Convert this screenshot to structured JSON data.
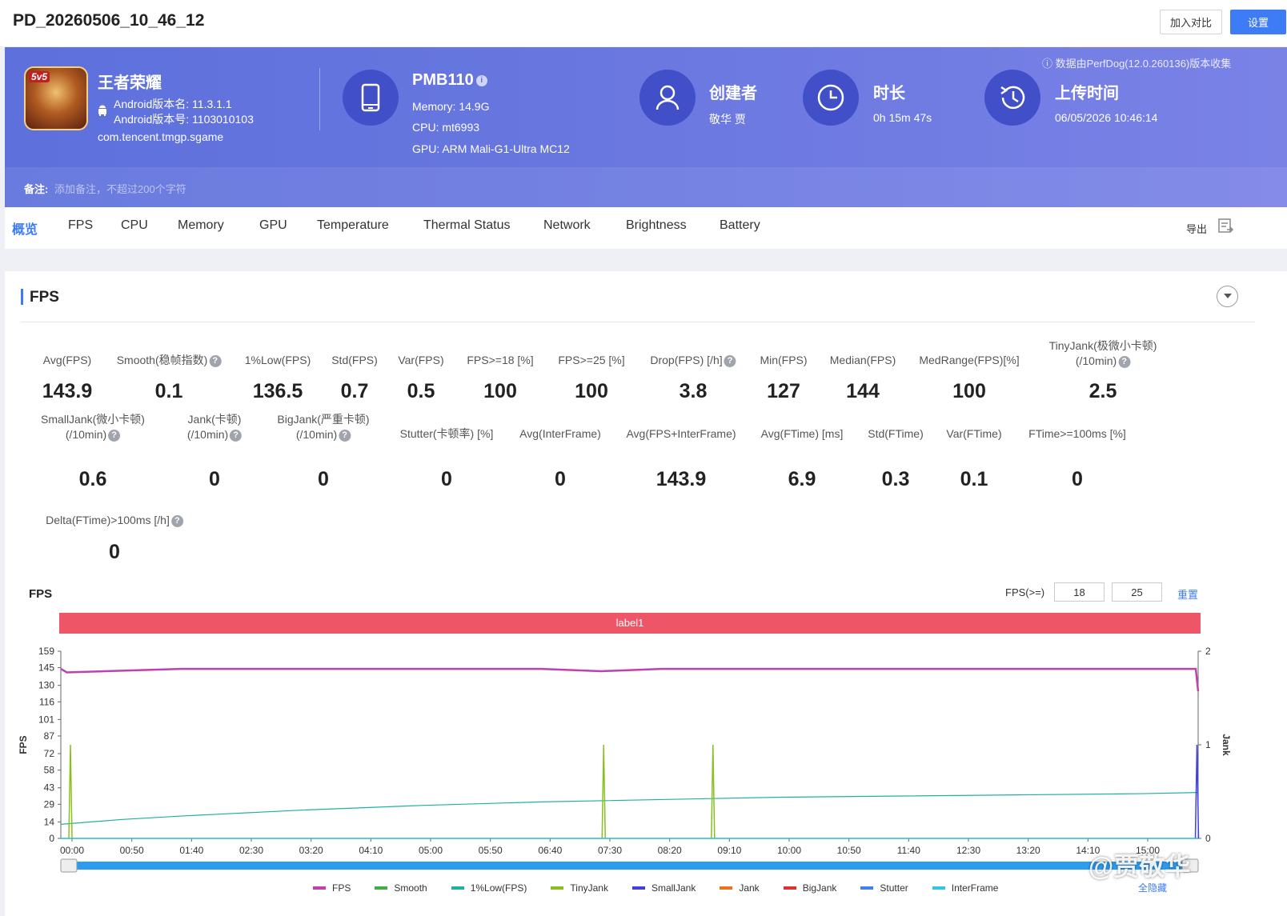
{
  "header": {
    "title": "PD_20260506_10_46_12",
    "compare_btn": "加入对比",
    "settings_btn": "设置"
  },
  "banner": {
    "data_source": "ⓘ 数据由PerfDog(12.0.260136)版本收集",
    "app": {
      "icon_tag": "5v5",
      "name": "王者荣耀",
      "android_version_name": "Android版本名: 11.3.1.1",
      "android_version_code": "Android版本号: 1103010103",
      "package": "com.tencent.tmgp.sgame"
    },
    "device": {
      "name": "PMB110",
      "memory": "Memory: 14.9G",
      "cpu": "CPU: mt6993",
      "gpu": "GPU: ARM Mali-G1-Ultra MC12"
    },
    "creator": {
      "title": "创建者",
      "value": "敬华 贾"
    },
    "duration": {
      "title": "时长",
      "value": "0h 15m 47s"
    },
    "upload": {
      "title": "上传时间",
      "value": "06/05/2026 10:46:14"
    },
    "note_label": "备注:",
    "note_placeholder": "添加备注，不超过200个字符"
  },
  "tabs": [
    "概览",
    "FPS",
    "CPU",
    "Memory",
    "GPU",
    "Temperature",
    "Thermal Status",
    "Network",
    "Brightness",
    "Battery"
  ],
  "export_label": "导出",
  "panel": {
    "title": "FPS",
    "metrics_row1": [
      {
        "label": "Avg(FPS)",
        "value": "143.9"
      },
      {
        "label": "Smooth(稳帧指数)",
        "value": "0.1",
        "help": true
      },
      {
        "label": "1%Low(FPS)",
        "value": "136.5"
      },
      {
        "label": "Std(FPS)",
        "value": "0.7"
      },
      {
        "label": "Var(FPS)",
        "value": "0.5"
      },
      {
        "label": "FPS>=18 [%]",
        "value": "100"
      },
      {
        "label": "FPS>=25 [%]",
        "value": "100"
      },
      {
        "label": "Drop(FPS) [/h]",
        "value": "3.8",
        "help": true
      },
      {
        "label": "Min(FPS)",
        "value": "127"
      },
      {
        "label": "Median(FPS)",
        "value": "144"
      },
      {
        "label": "MedRange(FPS)[%]",
        "value": "100"
      },
      {
        "label": "TinyJank(极微小卡顿)",
        "label2": "(/10min)",
        "value": "2.5",
        "help": true
      }
    ],
    "metrics_row2": [
      {
        "label": "SmallJank(微小卡顿)",
        "label2": "(/10min)",
        "value": "0.6",
        "help": true
      },
      {
        "label": "Jank(卡顿)",
        "label2": "(/10min)",
        "value": "0",
        "help": true
      },
      {
        "label": "BigJank(严重卡顿)",
        "label2": "(/10min)",
        "value": "0",
        "help": true
      },
      {
        "label": "Stutter(卡顿率) [%]",
        "value": "0"
      },
      {
        "label": "Avg(InterFrame)",
        "value": "0"
      },
      {
        "label": "Avg(FPS+InterFrame)",
        "value": "143.9"
      },
      {
        "label": "Avg(FTime) [ms]",
        "value": "6.9"
      },
      {
        "label": "Std(FTime)",
        "value": "0.3"
      },
      {
        "label": "Var(FTime)",
        "value": "0.1"
      },
      {
        "label": "FTime>=100ms [%]",
        "value": "0"
      }
    ],
    "metrics_row3": [
      {
        "label": "Delta(FTime)>100ms [/h]",
        "value": "0",
        "help": true
      }
    ],
    "chart_title": "FPS",
    "fps_threshold_label": "FPS(>=)",
    "fps_threshold_1": "18",
    "fps_threshold_2": "25",
    "reset_label": "重置",
    "label_bar": "label1",
    "hide_all": "全隐藏",
    "watermark": "@贾敬华"
  },
  "chart_data": {
    "type": "line",
    "ylabel": "FPS",
    "ylabel_right": "Jank",
    "y_ticks": [
      0,
      14,
      29,
      43,
      58,
      72,
      87,
      101,
      116,
      130,
      145,
      159
    ],
    "y_right_ticks": [
      0,
      1,
      2
    ],
    "ylim": [
      0,
      159
    ],
    "ylim_right": [
      0,
      2
    ],
    "x_ticks": [
      "00:00",
      "00:50",
      "01:40",
      "02:30",
      "03:20",
      "04:10",
      "05:00",
      "05:50",
      "06:40",
      "07:30",
      "08:20",
      "09:10",
      "10:00",
      "10:50",
      "11:40",
      "12:30",
      "13:20",
      "14:10",
      "15:00"
    ],
    "x_max_seconds": 947,
    "series": [
      {
        "name": "FPS",
        "color": "#c040b0",
        "axis": "left",
        "x": [
          0,
          5,
          100,
          200,
          300,
          400,
          450,
          500,
          600,
          700,
          800,
          900,
          945,
          947
        ],
        "values": [
          144,
          141,
          144,
          144,
          144,
          144,
          142,
          144,
          144,
          144,
          144,
          144,
          144,
          125
        ]
      },
      {
        "name": "Smooth",
        "color": "#3cb043",
        "axis": "left",
        "x": [
          0,
          947
        ],
        "values": [
          0,
          0
        ]
      },
      {
        "name": "1%Low(FPS)",
        "color": "#20b0a0",
        "axis": "left",
        "x": [
          0,
          50,
          100,
          200,
          300,
          400,
          500,
          600,
          700,
          800,
          900,
          947
        ],
        "values": [
          12,
          16,
          19,
          24,
          28,
          31,
          33,
          35,
          36,
          37,
          38,
          39
        ]
      },
      {
        "name": "TinyJank",
        "color": "#88c020",
        "axis": "right",
        "spikes": [
          8,
          452,
          543
        ]
      },
      {
        "name": "SmallJank",
        "color": "#4040e0",
        "axis": "right",
        "spikes": [
          946
        ]
      },
      {
        "name": "Jank",
        "color": "#f07020",
        "axis": "right",
        "spikes": []
      },
      {
        "name": "BigJank",
        "color": "#e03030",
        "axis": "right",
        "spikes": []
      },
      {
        "name": "Stutter",
        "color": "#4080f0",
        "axis": "left",
        "x": [
          0,
          947
        ],
        "values": [
          0,
          0
        ]
      },
      {
        "name": "InterFrame",
        "color": "#30c8e0",
        "axis": "left",
        "x": [
          0,
          947
        ],
        "values": [
          0,
          0
        ]
      }
    ],
    "grid": false,
    "legend_position": "bottom"
  }
}
